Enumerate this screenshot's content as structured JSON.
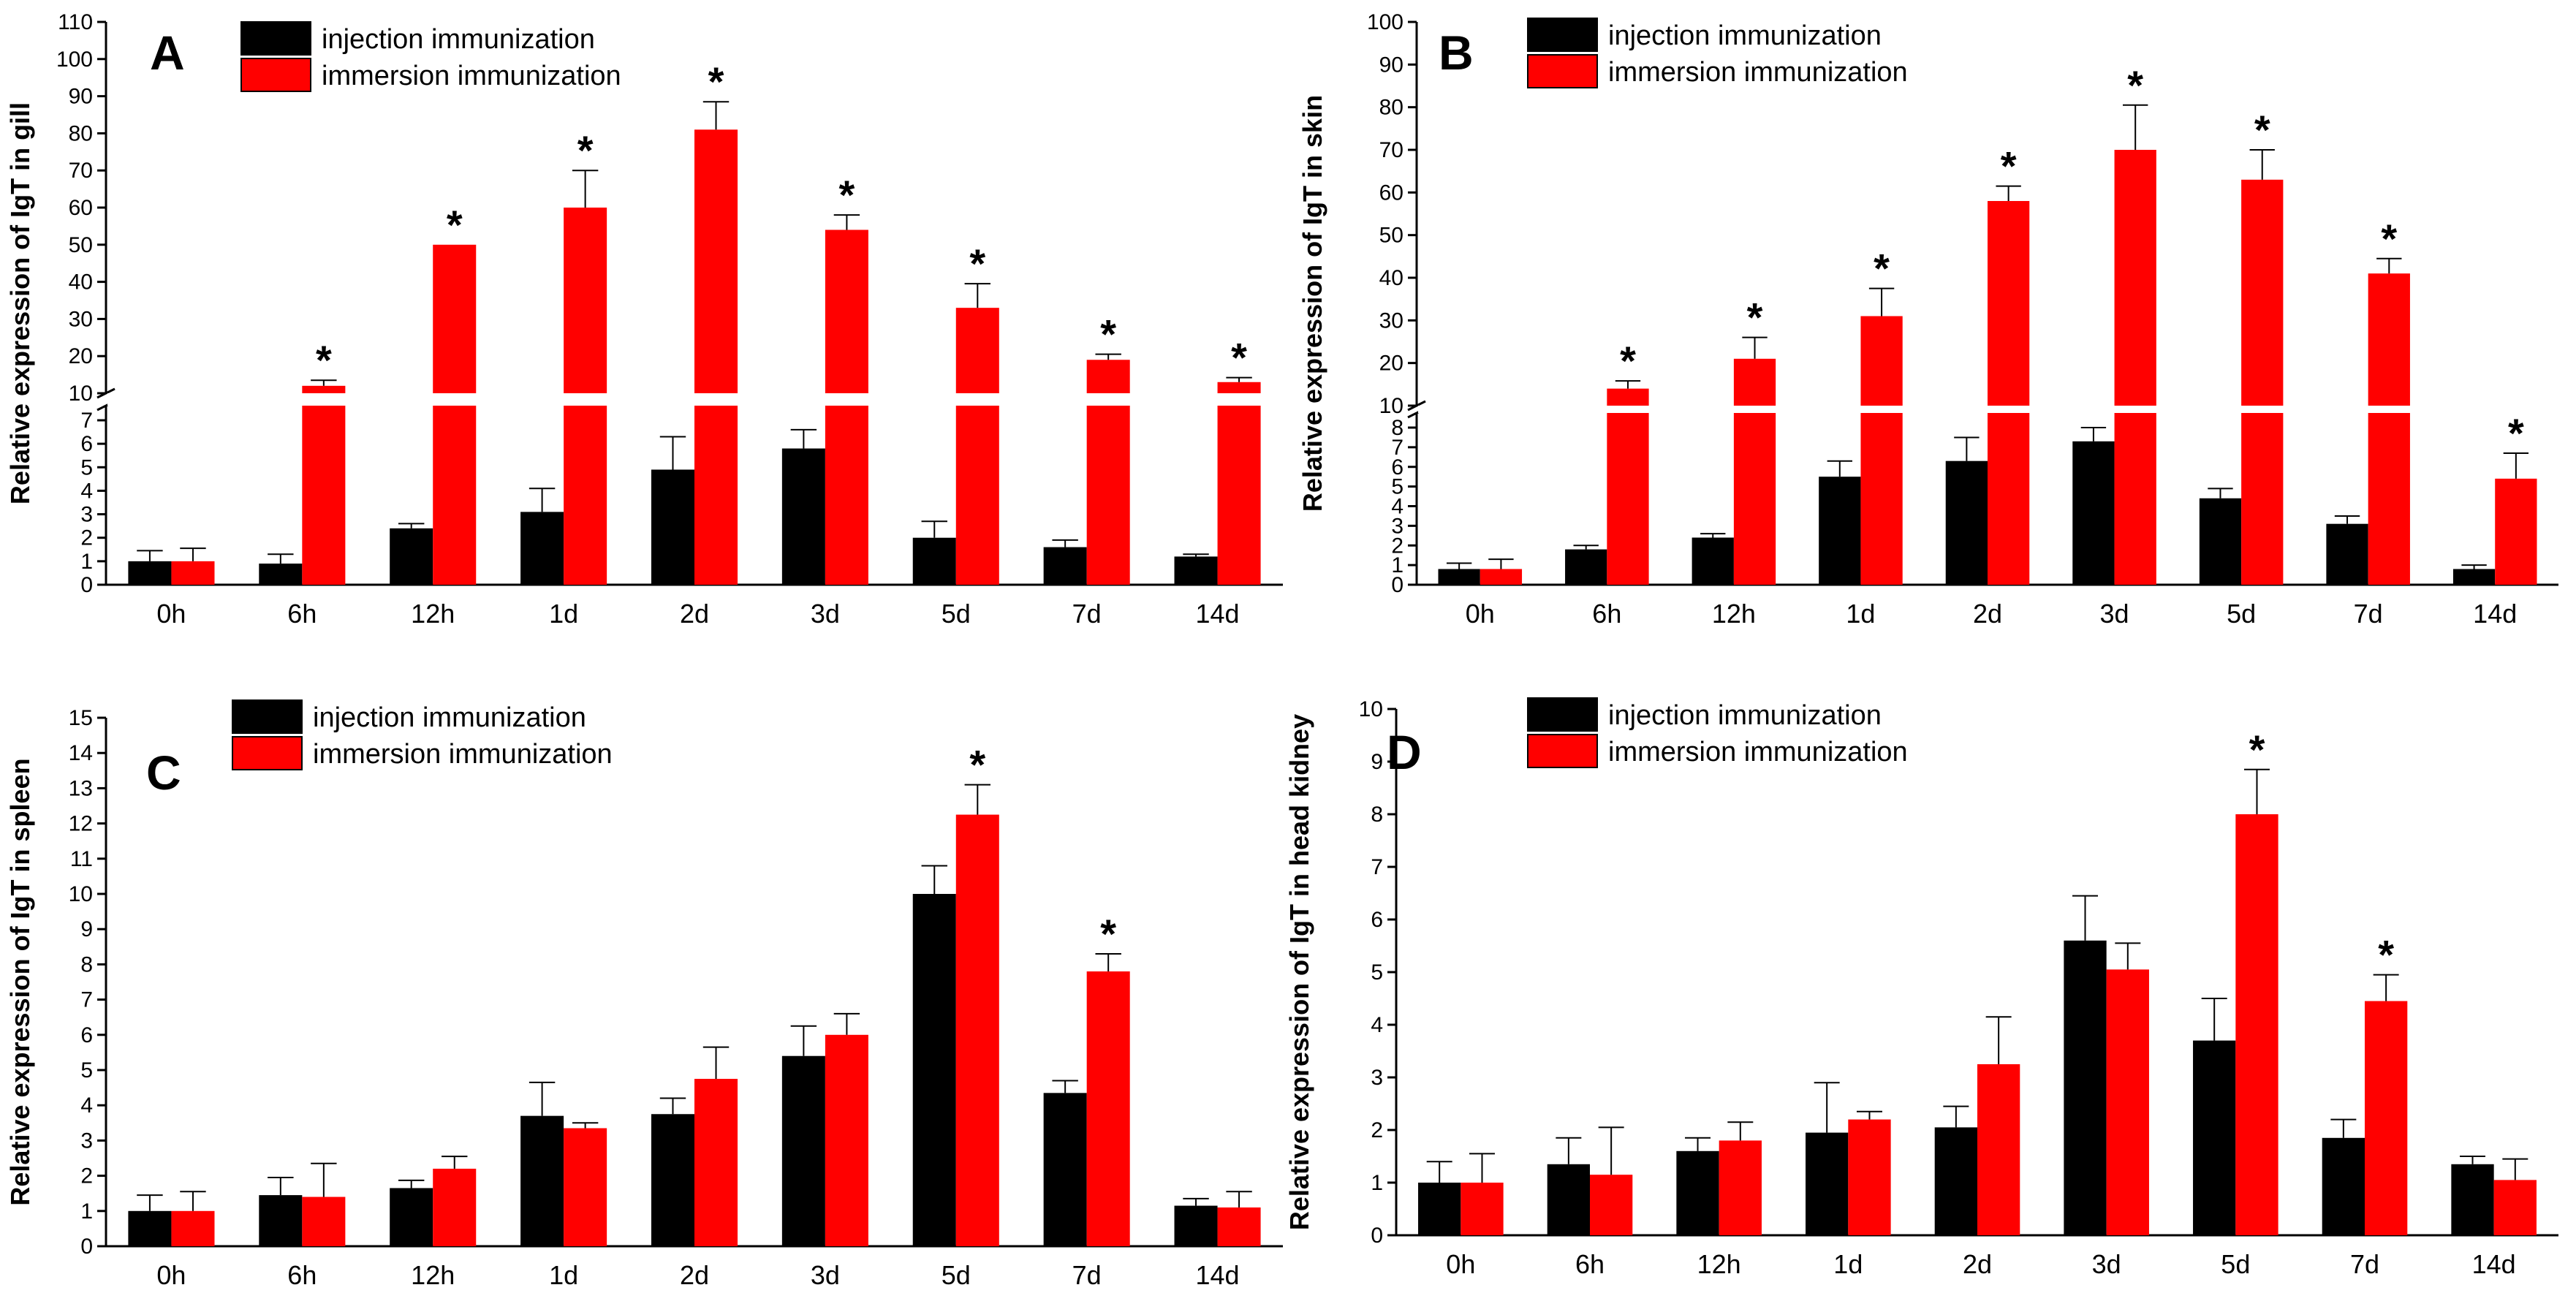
{
  "legend": {
    "injection": "injection immunization",
    "immersion": "immersion immunization"
  },
  "colors": {
    "injection": "#000000",
    "immersion": "#ff0000"
  },
  "chart_data": [
    {
      "panel": "A",
      "type": "bar",
      "ylabel": "Relative expression of IgT in gill",
      "categories": [
        "0h",
        "6h",
        "12h",
        "1d",
        "2d",
        "3d",
        "5d",
        "7d",
        "14d"
      ],
      "ylim": [
        0,
        110
      ],
      "axis_break": {
        "lower_range": [
          0,
          7
        ],
        "upper_range": [
          10,
          110
        ]
      },
      "lower_ticks": [
        0,
        1,
        2,
        3,
        4,
        5,
        6,
        7
      ],
      "upper_ticks": [
        10,
        20,
        30,
        40,
        50,
        60,
        70,
        80,
        90,
        100,
        110
      ],
      "series": [
        {
          "name": "injection immunization",
          "values": [
            1.0,
            0.9,
            2.4,
            3.1,
            4.9,
            5.8,
            2.0,
            1.6,
            1.2
          ],
          "errors": [
            0.45,
            0.4,
            0.2,
            1.0,
            1.4,
            0.8,
            0.7,
            0.3,
            0.1
          ]
        },
        {
          "name": "immersion immunization",
          "values": [
            1.0,
            12,
            50,
            60,
            81,
            54,
            33,
            19,
            13
          ],
          "errors": [
            0.55,
            1.5,
            0,
            10,
            7.5,
            4,
            6.5,
            1.5,
            1.2
          ]
        }
      ],
      "significant": [
        false,
        true,
        true,
        true,
        true,
        true,
        true,
        true,
        true
      ],
      "significance_label": "*"
    },
    {
      "panel": "B",
      "type": "bar",
      "ylabel": "Relative expression of IgT in skin",
      "categories": [
        "0h",
        "6h",
        "12h",
        "1d",
        "2d",
        "3d",
        "5d",
        "7d",
        "14d"
      ],
      "ylim": [
        0,
        100
      ],
      "axis_break": {
        "lower_range": [
          0,
          8
        ],
        "upper_range": [
          10,
          100
        ]
      },
      "lower_ticks": [
        0,
        1,
        2,
        3,
        4,
        5,
        6,
        7,
        8
      ],
      "upper_ticks": [
        10,
        20,
        30,
        40,
        50,
        60,
        70,
        80,
        90,
        100
      ],
      "series": [
        {
          "name": "injection immunization",
          "values": [
            0.8,
            1.8,
            2.4,
            5.5,
            6.3,
            7.3,
            4.4,
            3.1,
            0.8
          ],
          "errors": [
            0.3,
            0.2,
            0.2,
            0.8,
            1.2,
            0.7,
            0.5,
            0.4,
            0.2
          ]
        },
        {
          "name": "immersion immunization",
          "values": [
            0.8,
            14,
            21,
            31,
            58,
            70,
            63,
            41,
            5.4
          ],
          "errors": [
            0.5,
            1.8,
            5,
            6.5,
            3.5,
            10.5,
            7,
            3.5,
            1.3
          ]
        }
      ],
      "significant": [
        false,
        true,
        true,
        true,
        true,
        true,
        true,
        true,
        true
      ],
      "significance_label": "*"
    },
    {
      "panel": "C",
      "type": "bar",
      "ylabel": "Relative expression of IgT in spleen",
      "categories": [
        "0h",
        "6h",
        "12h",
        "1d",
        "2d",
        "3d",
        "5d",
        "7d",
        "14d"
      ],
      "ylim": [
        0,
        15
      ],
      "ticks": [
        0,
        1,
        2,
        3,
        4,
        5,
        6,
        7,
        8,
        9,
        10,
        11,
        12,
        13,
        14,
        15
      ],
      "series": [
        {
          "name": "injection immunization",
          "values": [
            1.0,
            1.45,
            1.65,
            3.7,
            3.75,
            5.4,
            10.0,
            4.35,
            1.15
          ],
          "errors": [
            0.45,
            0.5,
            0.22,
            0.95,
            0.45,
            0.85,
            0.8,
            0.35,
            0.2
          ]
        },
        {
          "name": "immersion immunization",
          "values": [
            1.0,
            1.4,
            2.2,
            3.35,
            4.75,
            6.0,
            12.25,
            7.8,
            1.1
          ],
          "errors": [
            0.55,
            0.95,
            0.35,
            0.15,
            0.9,
            0.6,
            0.85,
            0.5,
            0.45
          ]
        }
      ],
      "significant": [
        false,
        false,
        false,
        false,
        false,
        false,
        true,
        true,
        false
      ],
      "significance_label": "*"
    },
    {
      "panel": "D",
      "type": "bar",
      "ylabel": "Relative expression of IgT in head kidney",
      "categories": [
        "0h",
        "6h",
        "12h",
        "1d",
        "2d",
        "3d",
        "5d",
        "7d",
        "14d"
      ],
      "ylim": [
        0,
        10
      ],
      "ticks": [
        0,
        1,
        2,
        3,
        4,
        5,
        6,
        7,
        8,
        9,
        10
      ],
      "series": [
        {
          "name": "injection immunization",
          "values": [
            1.0,
            1.35,
            1.6,
            1.95,
            2.05,
            5.6,
            3.7,
            1.85,
            1.35
          ],
          "errors": [
            0.4,
            0.5,
            0.25,
            0.95,
            0.4,
            0.85,
            0.8,
            0.35,
            0.15
          ]
        },
        {
          "name": "immersion immunization",
          "values": [
            1.0,
            1.15,
            1.8,
            2.2,
            3.25,
            5.05,
            8.0,
            4.45,
            1.05
          ],
          "errors": [
            0.55,
            0.9,
            0.35,
            0.15,
            0.9,
            0.5,
            0.85,
            0.5,
            0.4
          ]
        }
      ],
      "significant": [
        false,
        false,
        false,
        false,
        false,
        false,
        true,
        true,
        false
      ],
      "significance_label": "*"
    }
  ]
}
